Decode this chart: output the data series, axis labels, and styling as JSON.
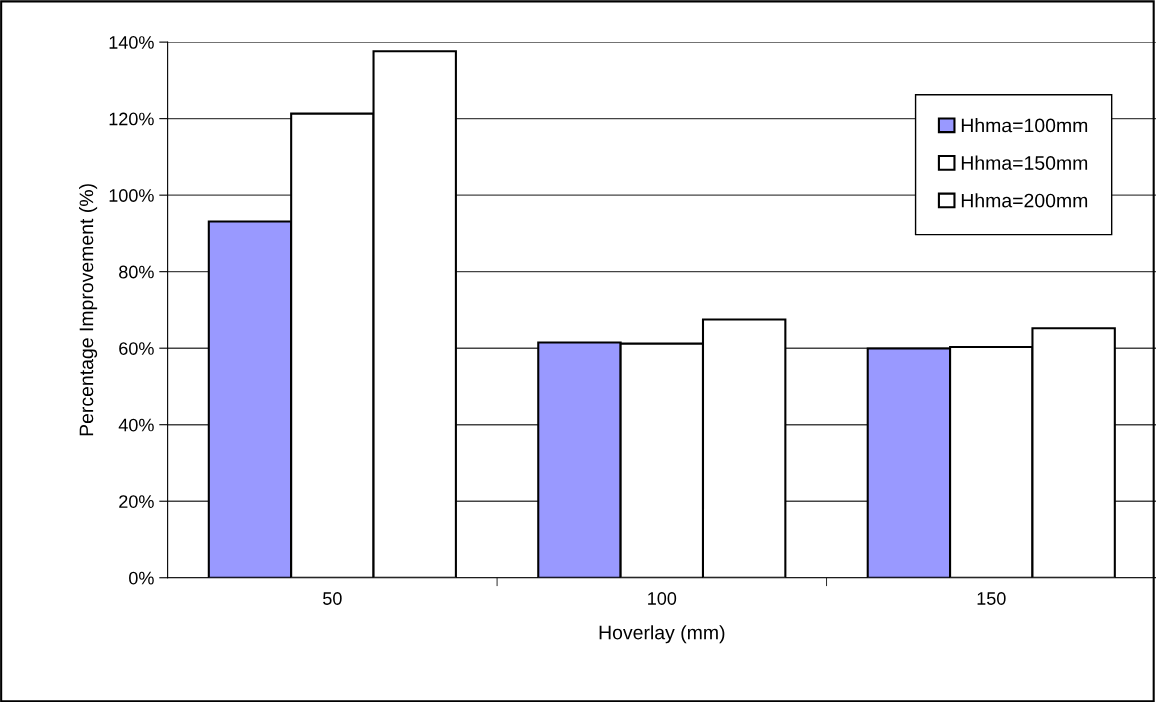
{
  "chart_data": {
    "type": "bar",
    "xlabel": "Hoverlay (mm)",
    "ylabel": "Percentage Improvement (%)",
    "categories": [
      "50",
      "100",
      "150"
    ],
    "series": [
      {
        "name": "Hhma=100mm",
        "color": "#9999ff",
        "values": [
          93.1,
          61.5,
          59.9
        ]
      },
      {
        "name": "Hhma=150mm",
        "color": "#ffffff",
        "values": [
          121.3,
          61.2,
          60.3
        ]
      },
      {
        "name": "Hhma=200mm",
        "color": "#ffffff",
        "values": [
          137.6,
          67.5,
          65.2
        ]
      }
    ],
    "ylim": [
      0,
      140
    ],
    "yticks": [
      {
        "value": 0,
        "label": "0%"
      },
      {
        "value": 20,
        "label": "20%"
      },
      {
        "value": 40,
        "label": "40%"
      },
      {
        "value": 60,
        "label": "60%"
      },
      {
        "value": 80,
        "label": "80%"
      },
      {
        "value": 100,
        "label": "100%"
      },
      {
        "value": 120,
        "label": "120%"
      },
      {
        "value": 140,
        "label": "140%"
      }
    ],
    "grid": "y",
    "legend": "top right"
  }
}
